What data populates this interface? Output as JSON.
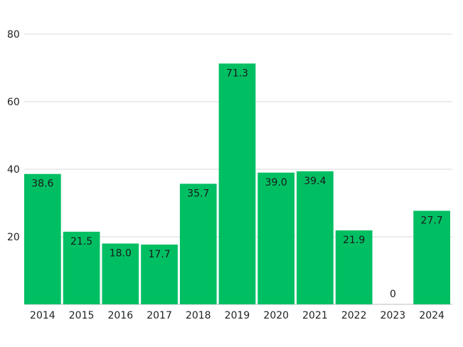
{
  "chart_data": {
    "type": "bar",
    "title": "",
    "xlabel": "",
    "ylabel": "",
    "categories": [
      "2014",
      "2015",
      "2016",
      "2017",
      "2018",
      "2019",
      "2020",
      "2021",
      "2022",
      "2023",
      "2024"
    ],
    "values": [
      38.6,
      21.5,
      18.0,
      17.7,
      35.7,
      71.3,
      39.0,
      39.4,
      21.9,
      0,
      27.7
    ],
    "value_labels": [
      "38.6",
      "21.5",
      "18.0",
      "17.7",
      "35.7",
      "71.3",
      "39.0",
      "39.4",
      "21.9",
      "0",
      "27.7"
    ],
    "ylim": [
      0,
      80
    ],
    "yticks": [
      20,
      40,
      60,
      80
    ],
    "ytick_labels": [
      "20",
      "40",
      "60",
      "80"
    ],
    "grid": true,
    "legend": "none",
    "bar_color": "#00bf63"
  }
}
